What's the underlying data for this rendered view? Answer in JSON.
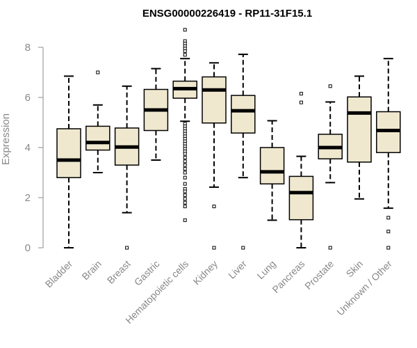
{
  "chart_data": {
    "type": "boxplot",
    "title": "ENSG00000226419 - RP11-31F15.1",
    "xlabel": "",
    "ylabel": "Expression",
    "ylim": [
      0,
      8.8
    ],
    "yticks": [
      0,
      2,
      4,
      6,
      8
    ],
    "grid": false,
    "colors": {
      "box_fill": "#EFE8CF",
      "stroke": "#000000",
      "axis": "#888888"
    },
    "categories": [
      "Bladder",
      "Brain",
      "Breast",
      "Gastric",
      "Hematopoietic cells",
      "Kidney",
      "Liver",
      "Lung",
      "Pancreas",
      "Prostate",
      "Skin",
      "Unknown / Other"
    ],
    "boxes": [
      {
        "category": "Bladder",
        "whisker_low": 0.0,
        "q1": 2.8,
        "median": 3.5,
        "q3": 4.75,
        "whisker_high": 6.85,
        "outliers": []
      },
      {
        "category": "Brain",
        "whisker_low": 3.0,
        "q1": 3.9,
        "median": 4.2,
        "q3": 4.85,
        "whisker_high": 5.7,
        "outliers": [
          7.0
        ]
      },
      {
        "category": "Breast",
        "whisker_low": 1.4,
        "q1": 3.3,
        "median": 4.02,
        "q3": 4.78,
        "whisker_high": 6.45,
        "outliers": [
          0.0
        ]
      },
      {
        "category": "Gastric",
        "whisker_low": 3.5,
        "q1": 4.68,
        "median": 5.5,
        "q3": 6.32,
        "whisker_high": 7.15,
        "outliers": []
      },
      {
        "category": "Hematopoietic cells",
        "whisker_low": 5.05,
        "q1": 5.97,
        "median": 6.35,
        "q3": 6.65,
        "whisker_high": 7.55,
        "outliers": [
          8.7,
          8.25,
          8.15,
          8.05,
          7.95,
          7.85,
          7.7,
          4.95,
          4.85,
          4.75,
          4.65,
          4.55,
          4.45,
          4.35,
          4.25,
          4.15,
          4.05,
          3.95,
          3.85,
          3.75,
          3.6,
          3.45,
          3.3,
          3.15,
          3.0,
          2.8,
          2.55,
          2.35,
          2.25,
          2.1,
          1.95,
          1.8,
          1.65,
          1.1
        ]
      },
      {
        "category": "Kidney",
        "whisker_low": 2.42,
        "q1": 4.98,
        "median": 6.3,
        "q3": 6.82,
        "whisker_high": 7.38,
        "outliers": [
          1.65,
          0.0
        ]
      },
      {
        "category": "Liver",
        "whisker_low": 2.8,
        "q1": 4.58,
        "median": 5.47,
        "q3": 6.08,
        "whisker_high": 7.72,
        "outliers": [
          0.0
        ]
      },
      {
        "category": "Lung",
        "whisker_low": 1.1,
        "q1": 2.55,
        "median": 3.03,
        "q3": 4.0,
        "whisker_high": 5.07,
        "outliers": []
      },
      {
        "category": "Pancreas",
        "whisker_low": 0.0,
        "q1": 1.12,
        "median": 2.2,
        "q3": 2.85,
        "whisker_high": 3.65,
        "outliers": [
          6.15,
          5.8
        ]
      },
      {
        "category": "Prostate",
        "whisker_low": 2.6,
        "q1": 3.55,
        "median": 4.0,
        "q3": 4.53,
        "whisker_high": 5.82,
        "outliers": [
          6.45,
          0.0
        ]
      },
      {
        "category": "Skin",
        "whisker_low": 1.95,
        "q1": 3.42,
        "median": 5.38,
        "q3": 6.02,
        "whisker_high": 6.85,
        "outliers": []
      },
      {
        "category": "Unknown / Other",
        "whisker_low": 1.58,
        "q1": 3.8,
        "median": 4.68,
        "q3": 5.43,
        "whisker_high": 7.55,
        "outliers": [
          1.2,
          0.65,
          0.0
        ]
      }
    ]
  }
}
